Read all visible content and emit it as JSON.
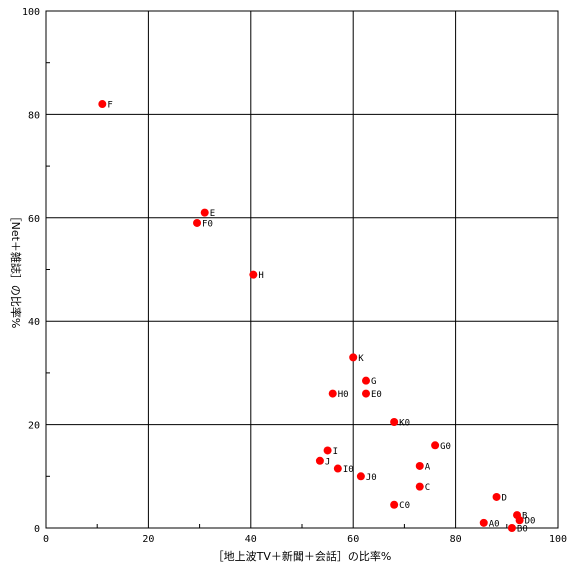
{
  "chart_data": {
    "type": "scatter",
    "title": "",
    "xlabel": "［地上波TV＋新聞＋会話］の比率%",
    "ylabel": "［Net＋雑誌］の比率%",
    "xlim": [
      0,
      100
    ],
    "ylim": [
      0,
      100
    ],
    "x_ticks": [
      0,
      20,
      40,
      60,
      80,
      100
    ],
    "y_ticks": [
      0,
      20,
      40,
      60,
      80,
      100
    ],
    "grid": true,
    "marker_color": "#ff0000",
    "points": [
      {
        "label": "F",
        "x": 11,
        "y": 82
      },
      {
        "label": "E",
        "x": 31,
        "y": 61
      },
      {
        "label": "F0",
        "x": 29.5,
        "y": 59
      },
      {
        "label": "H",
        "x": 40.5,
        "y": 49
      },
      {
        "label": "K",
        "x": 60,
        "y": 33
      },
      {
        "label": "G",
        "x": 62.5,
        "y": 28.5
      },
      {
        "label": "H0",
        "x": 56,
        "y": 26
      },
      {
        "label": "E0",
        "x": 62.5,
        "y": 26
      },
      {
        "label": "K0",
        "x": 68,
        "y": 20.5
      },
      {
        "label": "G0",
        "x": 76,
        "y": 16
      },
      {
        "label": "I",
        "x": 55,
        "y": 15
      },
      {
        "label": "J",
        "x": 53.5,
        "y": 13
      },
      {
        "label": "I0",
        "x": 57,
        "y": 11.5
      },
      {
        "label": "J0",
        "x": 61.5,
        "y": 10
      },
      {
        "label": "A",
        "x": 73,
        "y": 12
      },
      {
        "label": "C",
        "x": 73,
        "y": 8
      },
      {
        "label": "C0",
        "x": 68,
        "y": 4.5
      },
      {
        "label": "D",
        "x": 88,
        "y": 6
      },
      {
        "label": "B",
        "x": 92,
        "y": 2.5
      },
      {
        "label": "D0",
        "x": 92.5,
        "y": 1.5
      },
      {
        "label": "A0",
        "x": 85.5,
        "y": 1
      },
      {
        "label": "B0",
        "x": 91,
        "y": 0
      }
    ]
  }
}
